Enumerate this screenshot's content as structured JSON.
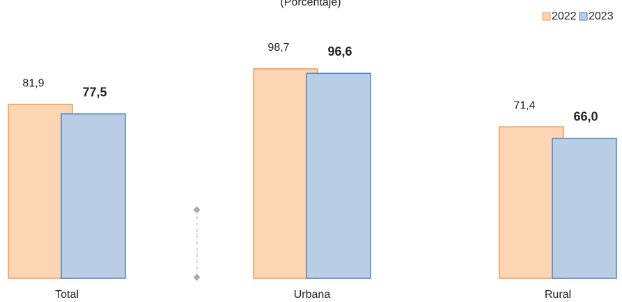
{
  "chart_data": {
    "type": "bar",
    "title": "(Porcentaje)",
    "categories": [
      "Total",
      "Urbana",
      "Rural"
    ],
    "series": [
      {
        "name": "2022",
        "color": "#fcd5b5",
        "stroke": "#f79646",
        "values": [
          81.9,
          98.7,
          71.4
        ],
        "value_labels": [
          "81,9",
          "98,7",
          "71,4"
        ]
      },
      {
        "name": "2023",
        "color": "#b9cde5",
        "stroke": "#4f81bd",
        "values": [
          77.5,
          96.6,
          66.0
        ],
        "value_labels": [
          "77,5",
          "96,6",
          "66,0"
        ]
      }
    ],
    "ylim": [
      0,
      100
    ],
    "legend": "top-right"
  }
}
